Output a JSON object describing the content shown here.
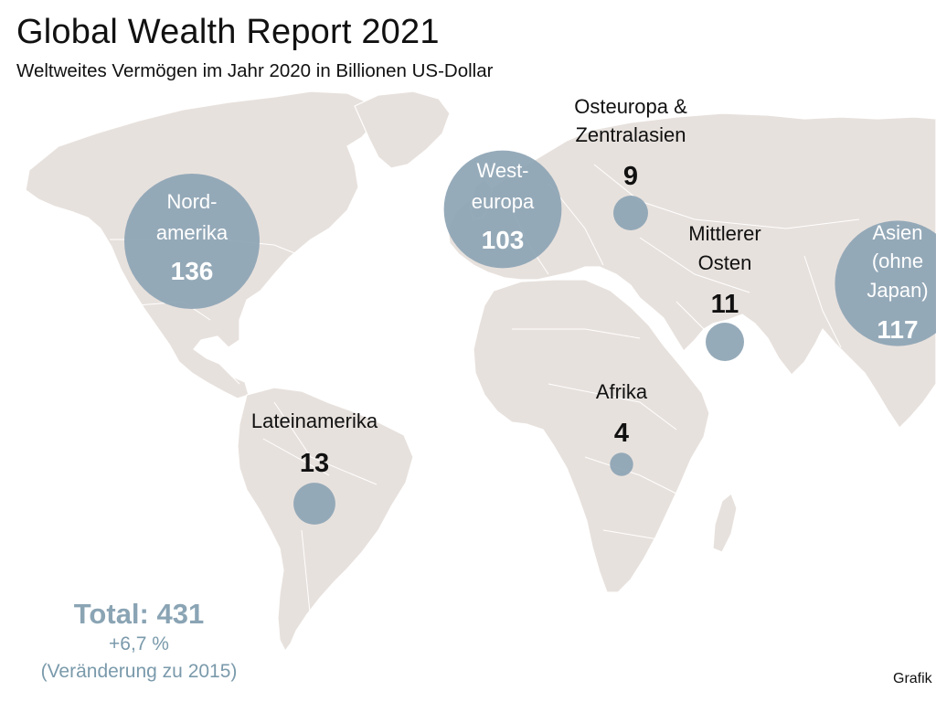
{
  "title": "Global Wealth Report 2021",
  "subtitle": "Weltweites Vermögen im Jahr 2020 in Billionen US-Dollar",
  "colors": {
    "land": "#e7e1dd",
    "border": "#ffffff",
    "bubble": "#8da4b4",
    "total": "#8aa4b4"
  },
  "regions": [
    {
      "name_lines": [
        "Nord-",
        "amerika"
      ],
      "value": "136",
      "wealth": 136
    },
    {
      "name_lines": [
        "West-",
        "europa"
      ],
      "value": "103",
      "wealth": 103
    },
    {
      "name_lines": [
        "Osteuropa &",
        "Zentralasien"
      ],
      "value": "9",
      "wealth": 9
    },
    {
      "name_lines": [
        "Mittlerer",
        "Osten"
      ],
      "value": "11",
      "wealth": 11
    },
    {
      "name_lines": [
        "Asien",
        "(ohne",
        "Japan)"
      ],
      "value": "117",
      "wealth": 117
    },
    {
      "name_lines": [
        "Afrika"
      ],
      "value": "4",
      "wealth": 4
    },
    {
      "name_lines": [
        "Lateinamerika"
      ],
      "value": "13",
      "wealth": 13
    }
  ],
  "total": {
    "label": "Total: 431",
    "change": "+6,7 %",
    "note": "(Veränderung zu 2015)"
  },
  "credit": "Grafik"
}
